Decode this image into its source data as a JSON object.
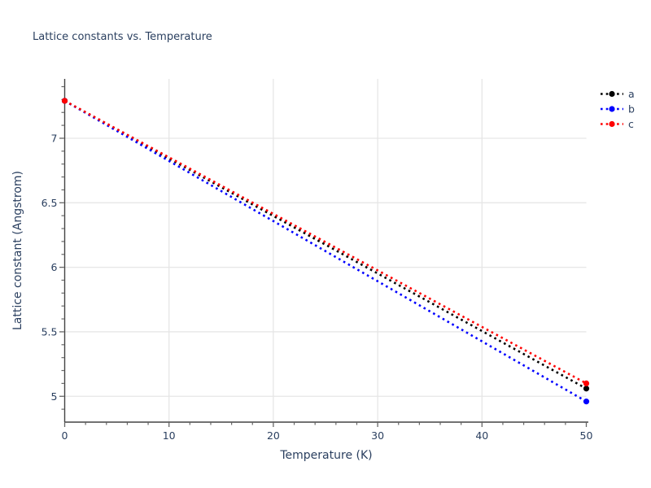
{
  "chart_data": {
    "type": "line",
    "title": "Lattice constants vs. Temperature",
    "xlabel": "Temperature (K)",
    "ylabel": "Lattice constant (Angstrom)",
    "x": [
      0,
      50
    ],
    "series": [
      {
        "name": "a",
        "color": "#000000",
        "values": [
          7.29,
          5.06
        ]
      },
      {
        "name": "b",
        "color": "#0000ff",
        "values": [
          7.29,
          4.96
        ]
      },
      {
        "name": "c",
        "color": "#ff0000",
        "values": [
          7.29,
          5.1
        ]
      }
    ],
    "xlim": [
      0,
      50
    ],
    "ylim": [
      4.8,
      7.46
    ],
    "x_ticks": {
      "values": [
        0,
        10,
        20,
        30,
        40,
        50
      ],
      "labels": [
        "0",
        "10",
        "20",
        "30",
        "40",
        "50"
      ],
      "minor_step": 2
    },
    "y_ticks": {
      "values": [
        5,
        5.5,
        6,
        6.5,
        7
      ],
      "labels": [
        "5",
        "5.5",
        "6",
        "6.5",
        "7"
      ],
      "minor_step": 0.1
    },
    "x_grid_at": [
      10,
      20,
      30,
      40
    ],
    "y_grid_at": [
      5,
      5.5,
      6,
      6.5,
      7
    ],
    "grid": true,
    "legend_position": "top-right",
    "line_style": "dotted",
    "marker": "circle"
  },
  "colors": {
    "text": "#2a3f5f",
    "spine": "#444444",
    "tick": "#666666",
    "grid": "#e6e6e6",
    "background": "#ffffff"
  }
}
